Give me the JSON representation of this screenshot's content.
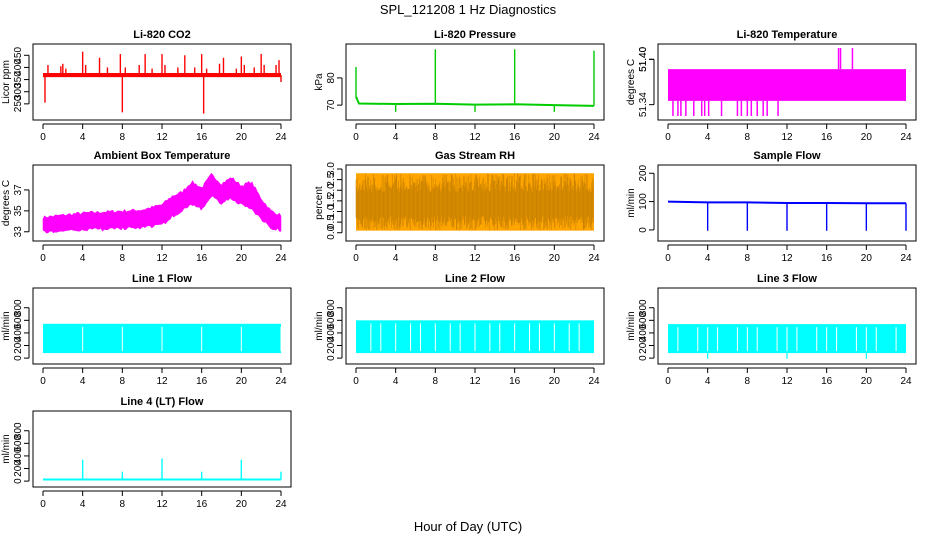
{
  "figure": {
    "title": "SPL_121208  1 Hz Diagnostics",
    "xlabel": "Hour of Day (UTC)"
  },
  "chart_data": [
    {
      "type": "line",
      "title": "Li-820 CO2",
      "ylabel": "Licor ppm",
      "color": "#ff0000",
      "xlim": [
        0,
        24
      ],
      "ylim": [
        200,
        480
      ],
      "xticks": [
        "0",
        "4",
        "8",
        "12",
        "16",
        "20",
        "24"
      ],
      "yticks": [
        [
          "250",
          250
        ],
        [
          "300",
          300
        ],
        [
          "350",
          350
        ],
        [
          "400",
          400
        ],
        [
          "450",
          450
        ]
      ],
      "band": [
        360,
        377
      ],
      "spikes": [
        [
          0.2,
          255
        ],
        [
          0.5,
          410
        ],
        [
          1.8,
          405
        ],
        [
          2.0,
          415
        ],
        [
          2.3,
          395
        ],
        [
          4.0,
          465
        ],
        [
          4.3,
          410
        ],
        [
          5.7,
          440
        ],
        [
          6.5,
          400
        ],
        [
          7.8,
          455
        ],
        [
          8.0,
          215
        ],
        [
          8.3,
          400
        ],
        [
          9.7,
          410
        ],
        [
          10.3,
          455
        ],
        [
          11.0,
          395
        ],
        [
          12.0,
          455
        ],
        [
          12.3,
          410
        ],
        [
          13.6,
          400
        ],
        [
          14.3,
          450
        ],
        [
          15.3,
          400
        ],
        [
          16.0,
          455
        ],
        [
          16.2,
          210
        ],
        [
          16.5,
          395
        ],
        [
          17.8,
          415
        ],
        [
          18.2,
          440
        ],
        [
          19.5,
          395
        ],
        [
          20.0,
          445
        ],
        [
          20.3,
          410
        ],
        [
          21.3,
          400
        ],
        [
          22.0,
          455
        ],
        [
          22.3,
          410
        ],
        [
          23.5,
          410
        ],
        [
          23.8,
          430
        ],
        [
          24.0,
          340
        ]
      ]
    },
    {
      "type": "line",
      "title": "Li-820 Pressure",
      "ylabel": "kPa",
      "color": "#00cc00",
      "xlim": [
        0,
        24
      ],
      "ylim": [
        66,
        91
      ],
      "xticks": [
        "0",
        "4",
        "8",
        "12",
        "16",
        "20",
        "24"
      ],
      "yticks": [
        [
          "70",
          70
        ],
        [
          "80",
          80
        ]
      ],
      "series": [
        {
          "x": [
            0,
            0.3,
            4,
            8,
            12,
            16,
            20,
            24
          ],
          "y": [
            73,
            70.6,
            70.4,
            70.5,
            70.2,
            70.3,
            70,
            69.7
          ]
        }
      ],
      "spikes": [
        [
          0,
          84
        ],
        [
          0.1,
          73
        ],
        [
          4,
          67.5
        ],
        [
          8,
          90.5
        ],
        [
          12,
          67.5
        ],
        [
          16,
          90.5
        ],
        [
          20,
          67.5
        ],
        [
          24,
          90
        ]
      ]
    },
    {
      "type": "area",
      "title": "Li-820 Temperature",
      "ylabel": "degrees C",
      "color": "#ff00ff",
      "xlim": [
        0,
        24
      ],
      "ylim": [
        51.325,
        51.415
      ],
      "xticks": [
        "0",
        "4",
        "8",
        "12",
        "16",
        "20",
        "24"
      ],
      "yticks": [
        [
          "51.34",
          51.34
        ],
        [
          "51.40",
          51.4
        ],
        [
          "51.40",
          51.4
        ]
      ],
      "band": [
        51.345,
        51.387
      ],
      "spikes_down": [
        0.5,
        1.0,
        1.3,
        1.8,
        2.6,
        3.4,
        3.7,
        4.1,
        5.4,
        7.0,
        7.4,
        8.0,
        8.4,
        9.0,
        9.6,
        10.0,
        11.1
      ],
      "spikes_up": [
        17.2,
        17.4,
        18.6
      ]
    },
    {
      "type": "area",
      "title": "Ambient Box Temperature",
      "ylabel": "degrees C",
      "color": "#ff00ff",
      "xlim": [
        0,
        24
      ],
      "ylim": [
        32.5,
        39
      ],
      "xticks": [
        "0",
        "4",
        "8",
        "12",
        "16",
        "20",
        "24"
      ],
      "yticks": [
        [
          "33",
          33
        ],
        [
          "35",
          35
        ],
        [
          "37",
          37
        ]
      ],
      "upper": {
        "x": [
          0,
          2,
          4,
          6,
          8,
          10,
          12,
          13,
          14,
          15,
          16,
          17,
          18,
          19,
          20,
          21,
          22,
          23,
          24
        ],
        "y": [
          34.4,
          34.6,
          34.8,
          34.9,
          35.0,
          35.1,
          35.6,
          36.4,
          36.8,
          37.8,
          37.2,
          38.5,
          37.6,
          38.2,
          37.4,
          37.8,
          36.2,
          35.0,
          34.6
        ]
      },
      "lower": {
        "x": [
          0,
          2,
          4,
          6,
          8,
          10,
          12,
          13,
          14,
          15,
          16,
          17,
          18,
          19,
          20,
          21,
          22,
          23,
          24
        ],
        "y": [
          33.0,
          33.1,
          33.2,
          33.2,
          33.3,
          33.4,
          33.6,
          34.4,
          35.0,
          35.6,
          35.1,
          36.4,
          35.7,
          36.2,
          35.6,
          35.2,
          34.2,
          33.4,
          33.1
        ]
      }
    },
    {
      "type": "area",
      "title": "Gas Stream RH",
      "ylabel": "percent",
      "color": "#ffa500",
      "xlim": [
        0,
        24
      ],
      "ylim": [
        -0.2,
        3.0
      ],
      "xticks": [
        "0",
        "4",
        "8",
        "12",
        "16",
        "20",
        "24"
      ],
      "yticks": [
        [
          "0.0",
          0
        ],
        [
          "0.5",
          0.5
        ],
        [
          "1.0",
          1
        ],
        [
          "1.5",
          1.5
        ],
        [
          "2.0",
          2
        ],
        [
          "2.5",
          2.5
        ],
        [
          "3.0",
          3
        ]
      ],
      "band": [
        0.1,
        2.8
      ]
    },
    {
      "type": "line",
      "title": "Sample Flow",
      "ylabel": "ml/min",
      "color": "#0000ff",
      "xlim": [
        0,
        24
      ],
      "ylim": [
        -25,
        215
      ],
      "xticks": [
        "0",
        "4",
        "8",
        "12",
        "16",
        "20",
        "24"
      ],
      "yticks": [
        [
          "0",
          0
        ],
        [
          "100",
          100
        ],
        [
          "200",
          200
        ]
      ],
      "series": [
        {
          "x": [
            0,
            4,
            8,
            12,
            16,
            20,
            24
          ],
          "y": [
            100,
            97,
            97,
            95,
            95,
            94,
            94
          ]
        }
      ],
      "spikes": [
        [
          4,
          -3
        ],
        [
          8,
          -3
        ],
        [
          12,
          -3
        ],
        [
          16,
          -3
        ],
        [
          20,
          -3
        ],
        [
          24,
          -3
        ]
      ]
    },
    {
      "type": "area",
      "title": "Line 1 Flow",
      "ylabel": "ml/min",
      "color": "#00ffff",
      "xlim": [
        0,
        24
      ],
      "ylim": [
        -30,
        1050
      ],
      "xticks": [
        "0",
        "4",
        "8",
        "12",
        "16",
        "20",
        "24"
      ],
      "yticks": [
        [
          "0",
          0
        ],
        [
          "200",
          200
        ],
        [
          "400",
          400
        ],
        [
          "600",
          600
        ],
        [
          "800",
          800
        ]
      ],
      "band": [
        80,
        545
      ],
      "gaps": [
        4,
        8,
        12,
        16,
        20,
        24
      ]
    },
    {
      "type": "area",
      "title": "Line 2 Flow",
      "ylabel": "ml/min",
      "color": "#00ffff",
      "xlim": [
        0,
        24
      ],
      "ylim": [
        -30,
        1050
      ],
      "xticks": [
        "0",
        "4",
        "8",
        "12",
        "16",
        "20",
        "24"
      ],
      "yticks": [
        [
          "0",
          0
        ],
        [
          "200",
          200
        ],
        [
          "400",
          400
        ],
        [
          "600",
          600
        ],
        [
          "800",
          800
        ]
      ],
      "band": [
        80,
        600
      ],
      "gaps": [
        1.5,
        2.5,
        4,
        5.5,
        6.5,
        8,
        9.5,
        10.5,
        12,
        13.5,
        14.5,
        16,
        17.5,
        18.5,
        20,
        21.5,
        22.5
      ]
    },
    {
      "type": "area",
      "title": "Line 3 Flow",
      "ylabel": "ml/min",
      "color": "#00ffff",
      "xlim": [
        0,
        24
      ],
      "ylim": [
        -30,
        1050
      ],
      "xticks": [
        "0",
        "4",
        "8",
        "12",
        "16",
        "20",
        "24"
      ],
      "yticks": [
        [
          "0",
          0
        ],
        [
          "200",
          200
        ],
        [
          "400",
          400
        ],
        [
          "600",
          600
        ],
        [
          "800",
          800
        ]
      ],
      "band": [
        80,
        540
      ],
      "gaps": [
        1,
        3,
        4,
        5,
        7,
        8,
        9,
        11,
        12,
        13,
        15,
        16,
        17,
        19,
        20,
        21,
        23
      ],
      "dips": [
        4,
        12,
        20
      ]
    },
    {
      "type": "line",
      "title": "Line 4 (LT) Flow",
      "ylabel": "ml/min",
      "color": "#00ffff",
      "xlim": [
        0,
        24
      ],
      "ylim": [
        -30,
        1050
      ],
      "xticks": [
        "0",
        "4",
        "8",
        "12",
        "16",
        "20",
        "24"
      ],
      "yticks": [
        [
          "0",
          0
        ],
        [
          "200",
          200
        ],
        [
          "400",
          400
        ],
        [
          "600",
          600
        ],
        [
          "800",
          800
        ]
      ],
      "series": [
        {
          "x": [
            0,
            24
          ],
          "y": [
            25,
            25
          ]
        }
      ],
      "spikes": [
        [
          4,
          340
        ],
        [
          8,
          150
        ],
        [
          12,
          360
        ],
        [
          16,
          150
        ],
        [
          20,
          340
        ],
        [
          24,
          150
        ]
      ]
    }
  ]
}
